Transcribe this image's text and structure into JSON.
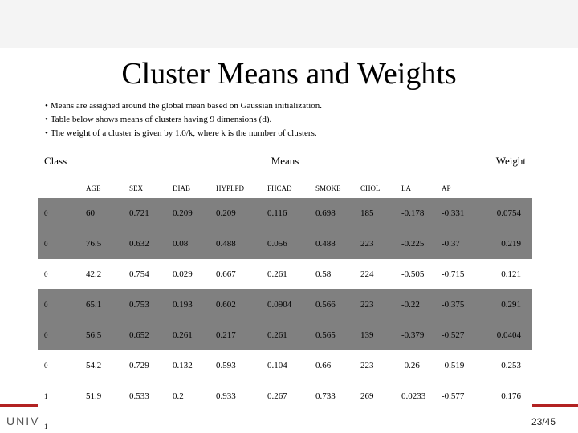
{
  "title": "Cluster Means and Weights",
  "bullets": [
    "Means are assigned around the global mean based on Gaussian initialization.",
    "Table below shows means of clusters having 9 dimensions (d).",
    "The weight of a cluster is given by 1.0/k, where k is the number of clusters."
  ],
  "table": {
    "class_label": "Class",
    "means_label": "Means",
    "weight_label": "Weight",
    "columns": [
      "AGE",
      "SEX",
      "DIAB",
      "HYPLPD",
      "FHCAD",
      "SMOKE",
      "CHOL",
      "LA",
      "AP"
    ],
    "rows": [
      {
        "class": "0",
        "values": [
          "60",
          "0.721",
          "0.209",
          "0.209",
          "0.116",
          "0.698",
          "185",
          "-0.178",
          "-0.331"
        ],
        "weight": "0.0754",
        "shade": "dark"
      },
      {
        "class": "0",
        "values": [
          "76.5",
          "0.632",
          "0.08",
          "0.488",
          "0.056",
          "0.488",
          "223",
          "-0.225",
          "-0.37"
        ],
        "weight": "0.219",
        "shade": "dark"
      },
      {
        "class": "0",
        "values": [
          "42.2",
          "0.754",
          "0.029",
          "0.667",
          "0.261",
          "0.58",
          "224",
          "-0.505",
          "-0.715"
        ],
        "weight": "0.121",
        "shade": "light"
      },
      {
        "class": "0",
        "values": [
          "65.1",
          "0.753",
          "0.193",
          "0.602",
          "0.0904",
          "0.566",
          "223",
          "-0.22",
          "-0.375"
        ],
        "weight": "0.291",
        "shade": "dark"
      },
      {
        "class": "0",
        "values": [
          "56.5",
          "0.652",
          "0.261",
          "0.217",
          "0.261",
          "0.565",
          "139",
          "-0.379",
          "-0.527"
        ],
        "weight": "0.0404",
        "shade": "dark"
      },
      {
        "class": "0",
        "values": [
          "54.2",
          "0.729",
          "0.132",
          "0.593",
          "0.104",
          "0.66",
          "223",
          "-0.26",
          "-0.519"
        ],
        "weight": "0.253",
        "shade": "light"
      },
      {
        "class": "1",
        "values": [
          "51.9",
          "0.533",
          "0.2",
          "0.933",
          "0.267",
          "0.733",
          "269",
          "0.0233",
          "-0.577"
        ],
        "weight": "0.176",
        "shade": "light"
      },
      {
        "class": "1",
        "values": [
          "",
          "",
          "",
          "",
          "",
          "",
          "",
          "",
          ""
        ],
        "weight": "",
        "shade": "light"
      }
    ]
  },
  "footer": {
    "univ": "UNIV",
    "page": "23/45"
  }
}
